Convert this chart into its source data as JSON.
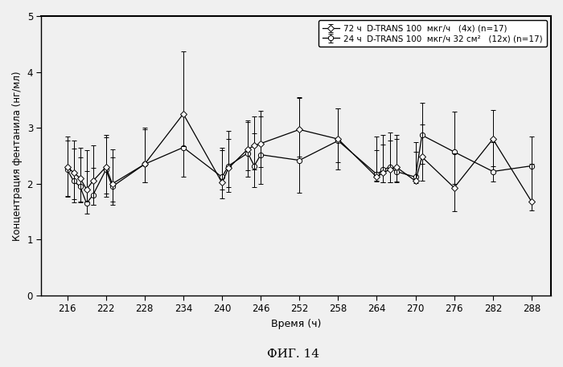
{
  "title": "ФИГ. 14",
  "xlabel": "Время (ч)",
  "ylabel": "Концентрация фентанила (нг/мл)",
  "xlim": [
    212,
    291
  ],
  "ylim": [
    0,
    5
  ],
  "xticks": [
    216,
    222,
    228,
    234,
    240,
    246,
    252,
    258,
    264,
    270,
    276,
    282,
    288
  ],
  "yticks": [
    0,
    1,
    2,
    3,
    4,
    5
  ],
  "legend1": "72 ч  D-TRANS 100  мкг/ч   (4x) (n=17)",
  "legend2": "24 ч  D-TRANS 100  мкг/ч 32 см²   (12x) (n=17)",
  "series1_x": [
    216,
    217,
    218,
    219,
    220,
    222,
    223,
    228,
    234,
    240,
    241,
    244,
    245,
    246,
    252,
    258,
    264,
    265,
    266,
    267,
    270,
    271,
    276,
    282,
    288
  ],
  "series1_y": [
    2.3,
    2.2,
    2.1,
    1.9,
    2.05,
    2.3,
    2.0,
    2.35,
    3.25,
    2.02,
    2.28,
    2.62,
    2.68,
    2.72,
    2.97,
    2.8,
    2.12,
    2.2,
    2.25,
    2.3,
    2.05,
    2.48,
    1.93,
    2.8,
    1.68
  ],
  "series1_yerr_upper": [
    0.55,
    0.58,
    0.55,
    0.7,
    0.63,
    0.58,
    0.62,
    0.65,
    1.12,
    0.58,
    0.52,
    0.48,
    0.52,
    0.58,
    0.58,
    0.55,
    0.48,
    0.5,
    0.52,
    0.58,
    0.52,
    0.58,
    0.62,
    0.52,
    0.68
  ],
  "series1_yerr_lower": [
    0.52,
    0.48,
    0.42,
    0.22,
    0.42,
    0.48,
    0.32,
    0.32,
    0.58,
    0.28,
    0.42,
    0.38,
    0.42,
    0.42,
    0.48,
    0.42,
    0.08,
    0.18,
    0.22,
    0.28,
    0.04,
    0.42,
    0.42,
    0.48,
    0.15
  ],
  "series2_x": [
    216,
    217,
    218,
    219,
    220,
    222,
    223,
    228,
    234,
    240,
    241,
    244,
    245,
    246,
    252,
    258,
    264,
    265,
    266,
    267,
    270,
    271,
    276,
    282,
    288
  ],
  "series2_y": [
    2.25,
    2.05,
    1.95,
    1.65,
    1.8,
    2.25,
    1.95,
    2.35,
    2.65,
    2.12,
    2.32,
    2.55,
    2.32,
    2.52,
    2.42,
    2.77,
    2.17,
    2.25,
    2.3,
    2.22,
    2.12,
    2.87,
    2.57,
    2.22,
    2.32
  ],
  "series2_yerr_upper": [
    0.52,
    0.58,
    0.52,
    0.58,
    0.48,
    0.58,
    0.52,
    0.62,
    0.58,
    0.52,
    0.62,
    0.58,
    0.58,
    0.68,
    1.12,
    0.58,
    0.68,
    0.62,
    0.62,
    0.58,
    0.62,
    0.58,
    0.72,
    0.52,
    0.52
  ],
  "series2_yerr_lower": [
    0.48,
    0.38,
    0.28,
    0.18,
    0.18,
    0.48,
    0.32,
    0.32,
    0.52,
    0.22,
    0.38,
    0.42,
    0.38,
    0.52,
    0.58,
    0.52,
    0.12,
    0.22,
    0.28,
    0.18,
    0.08,
    0.52,
    0.57,
    0.18,
    0.62
  ],
  "bg_color": "#f0f0f0",
  "plot_bg_color": "#f0f0f0",
  "line_color": "#000000",
  "marker_size": 4.5,
  "capsize": 2.5,
  "linewidth": 0.9
}
